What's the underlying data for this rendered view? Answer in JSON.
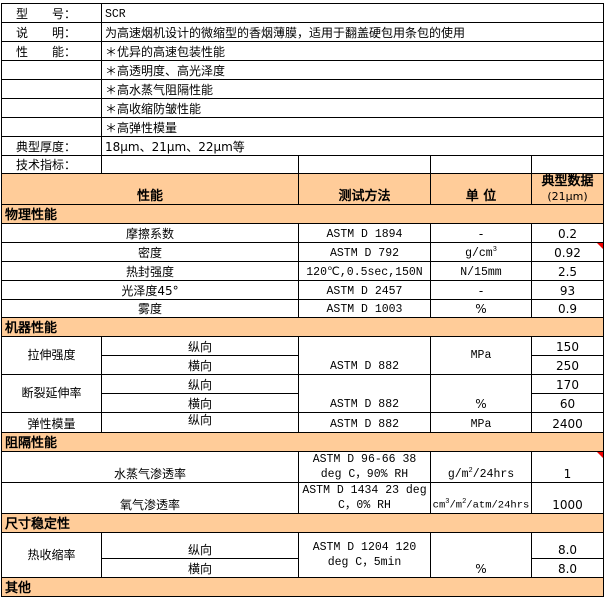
{
  "info": {
    "model_label": "型　　号：",
    "model": "SCR",
    "desc_label": "说　　明：",
    "desc": "为高速烟机设计的微缩型的香烟薄膜，适用于翻盖硬包用条包的使用",
    "perf_label": "性　　能：",
    "features": [
      "＊优异的高速包装性能",
      "＊高透明度、高光泽度",
      "＊高水蒸气阻隔性能",
      "＊高收缩防皱性能",
      "＊高弹性模量"
    ],
    "thickness_label": "典型厚度：",
    "thickness": "18μm、21μm、22μm等",
    "spec_label": "技术指标："
  },
  "header": {
    "property": "性能",
    "method": "测试方法",
    "unit": "单 位",
    "typical": "典型数据",
    "typical_sub": "(21μm)"
  },
  "physical": {
    "title": "物理性能",
    "rows": [
      {
        "name": "摩擦系数",
        "method": "ASTM D 1894",
        "unit": "-",
        "value": "0.2"
      },
      {
        "name": "密度",
        "method": "ASTM D 792",
        "unit": "g/cm",
        "unit_sup": "3",
        "value": "0.92"
      },
      {
        "name": "热封强度",
        "method": "120℃,0.5sec,150N",
        "unit": "N/15mm",
        "value": "2.5"
      },
      {
        "name": "光泽度45°",
        "method": "ASTM D 2457",
        "unit": "-",
        "value": "93"
      },
      {
        "name": "雾度",
        "method": "ASTM D 1003",
        "unit": "%",
        "value": "0.9"
      }
    ]
  },
  "mechanical": {
    "title": "机器性能",
    "tensile": {
      "name": "拉伸强度",
      "md": "纵向",
      "td": "横向",
      "method": "ASTM D 882",
      "unit": "MPa",
      "md_value": "150",
      "td_value": "250"
    },
    "elongation": {
      "name": "断裂延伸率",
      "md": "纵向",
      "td": "横向",
      "method": "ASTM D 882",
      "unit": "%",
      "md_value": "170",
      "td_value": "60"
    },
    "modulus": {
      "name": "弹性模量",
      "md": "纵向",
      "method": "ASTM D 882",
      "unit": "MPa",
      "value": "2400"
    }
  },
  "barrier": {
    "title": "阻隔性能",
    "wvtr": {
      "name": "水蒸气渗透率",
      "method": "ASTM D 96-66 38 deg C，90% RH",
      "unit_a": "g/m",
      "unit_sup": "2",
      "unit_b": "/24hrs",
      "value": "1"
    },
    "otr": {
      "name": "氧气渗透率",
      "method": "ASTM D 1434 23 deg C，0% RH",
      "unit_a": "cm",
      "unit_sup1": "3",
      "unit_b": "/m",
      "unit_sup2": "2",
      "unit_c": "/atm/24hrs",
      "value": "1000"
    }
  },
  "dimensional": {
    "title": "尺寸稳定性",
    "shrink": {
      "name": "热收缩率",
      "md": "纵向",
      "td": "横向",
      "method": "ASTM D 1204 120 deg C，5min",
      "unit": "%",
      "md_value": "8.0",
      "td_value": "8.0"
    }
  },
  "other": {
    "title": "其他"
  },
  "colors": {
    "section_fill": "#FFCC99",
    "comment_marker": "#EE0000"
  }
}
